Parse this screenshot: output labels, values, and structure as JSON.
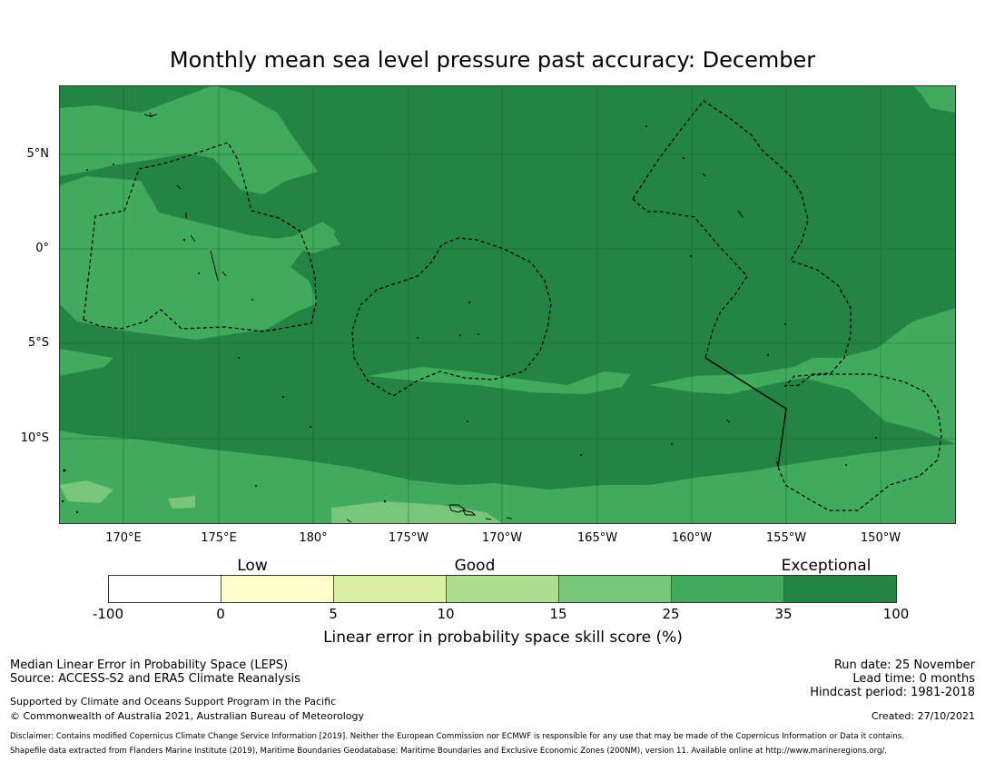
{
  "title": "Monthly mean sea level pressure past accuracy: December",
  "map": {
    "lat_labels": [
      "5°N",
      "0°",
      "5°S",
      "10°S"
    ],
    "lon_labels": [
      "170°E",
      "175°E",
      "180°",
      "175°W",
      "170°W",
      "165°W",
      "160°W",
      "155°W",
      "150°W"
    ]
  },
  "legend": {
    "categories": [
      "Low",
      "Good",
      "Exceptional"
    ],
    "ticks": [
      "-100",
      "0",
      "5",
      "10",
      "15",
      "25",
      "35",
      "100"
    ],
    "colors": [
      "#ffffff",
      "#ffffcc",
      "#d9f0a3",
      "#addd8e",
      "#78c679",
      "#41ab5d",
      "#238443"
    ],
    "title": "Linear error in probability space skill score (%)"
  },
  "footer": {
    "line1": "Median Linear Error in Probability Space (LEPS)",
    "line2": "Source: ACCESS-S2 and ERA5 Climate Reanalysis",
    "line3": "Supported by Climate and Oceans Support Program in the Pacific",
    "line4": "© Commonwealth of Australia 2021, Australian Bureau of Meteorology",
    "run_date": "Run date: 25 November",
    "lead_time": "Lead time: 0 months",
    "hindcast": "Hindcast period: 1981-2018",
    "created": "Created: 27/10/2021",
    "disclaimer1": "Disclaimer: Contains modified Copernicus Climate Change Service Information [2019]. Neither the European Commission nor ECMWF is responsible for any use that may be made of the Copernicus Information or Data it contains.",
    "disclaimer2": "Shapefile data extracted from Flanders Marine Institute (2019), Maritime Boundaries Geodatabase: Maritime Boundaries and Exclusive Economic Zones (200NM), version 11. Available online at http://www.marineregions.org/."
  }
}
